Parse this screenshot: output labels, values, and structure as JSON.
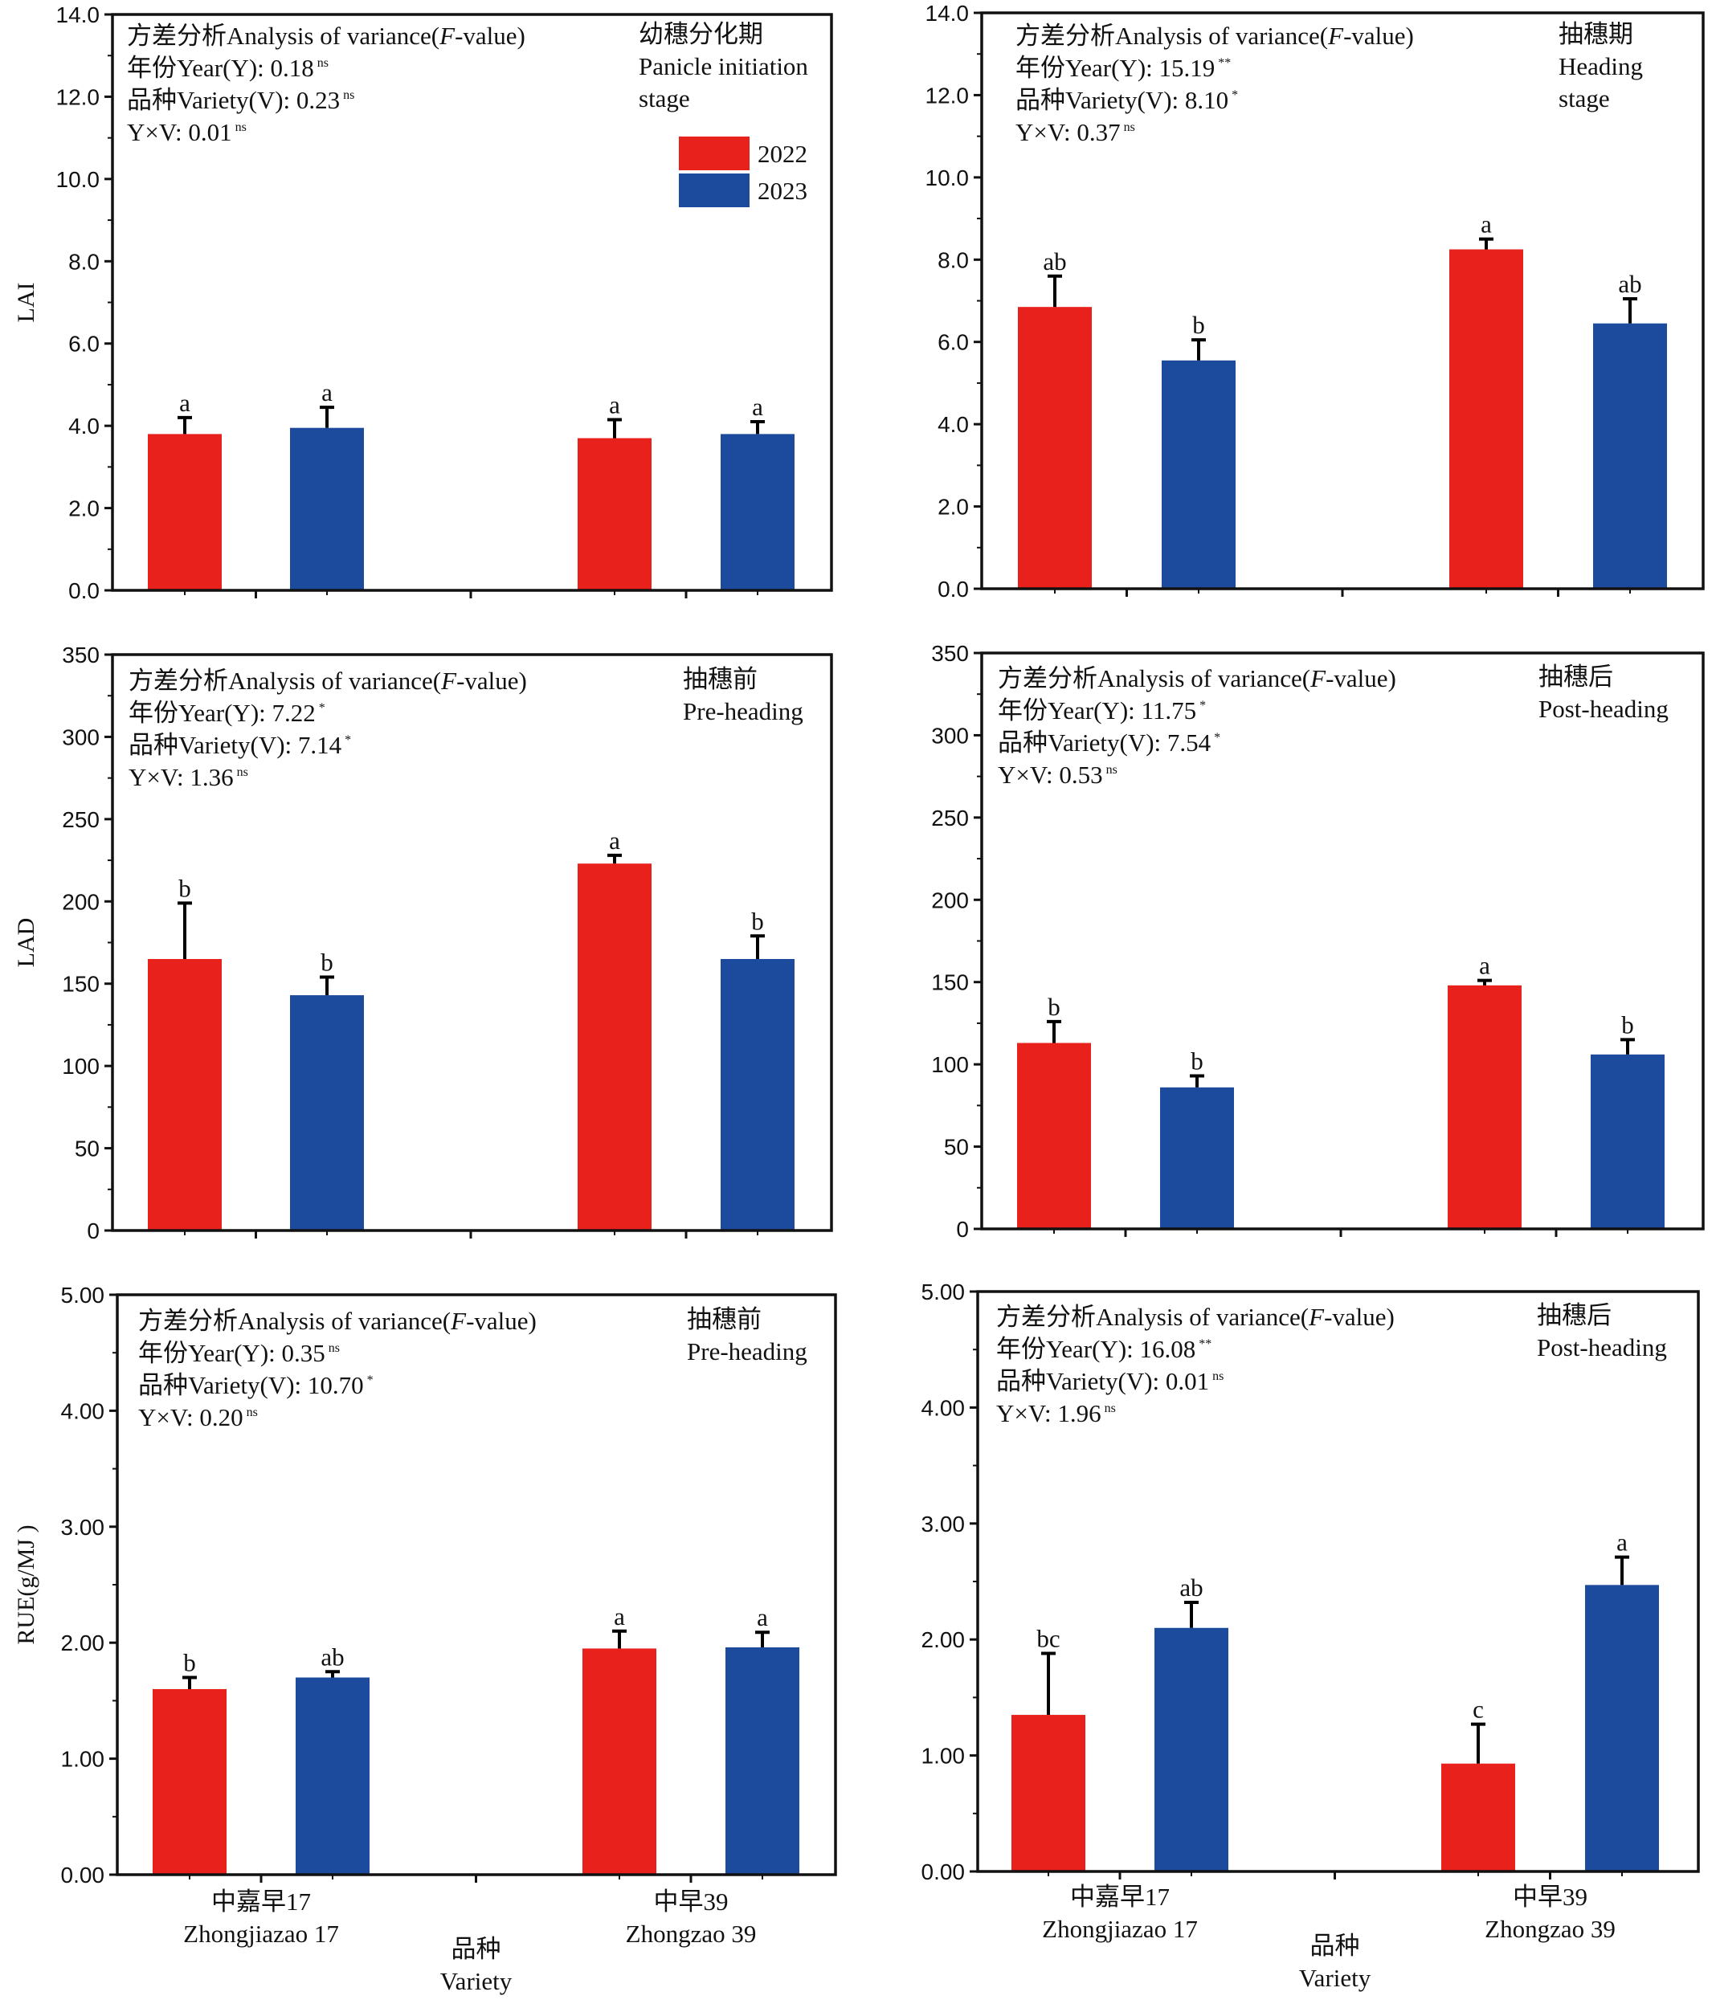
{
  "colors": {
    "y2022": "#e8211d",
    "y2023": "#1c4a9c",
    "axis": "#111111"
  },
  "shared": {
    "categories": [
      {
        "zh": "中嘉早17",
        "en": "Zhongjiazao 17"
      },
      {
        "zh": "中早39",
        "en": "Zhongzao 39"
      }
    ],
    "legend": [
      "2022",
      "2023"
    ],
    "xlabel": {
      "zh": "品种",
      "en": "Variety"
    },
    "anova_title": {
      "zh": "方差分析",
      "en_pre": "Analysis of variance(",
      "f": "F",
      "en_post": "-value)"
    }
  },
  "chart_data": [
    {
      "type": "bar",
      "panel": "a",
      "ylabel": "LAI",
      "ylim": [
        0,
        14
      ],
      "yticks": [
        "0.0",
        "2.0",
        "4.0",
        "6.0",
        "8.0",
        "10.0",
        "12.0",
        "14.0"
      ],
      "stage": {
        "zh": "幼穗分化期",
        "en": [
          "Panicle initiation",
          "stage"
        ]
      },
      "anova": [
        {
          "label": "年份Year(Y): 0.18",
          "sig": "ns"
        },
        {
          "label": "品种Variety(V): 0.23",
          "sig": "ns"
        },
        {
          "label": "Y×V: 0.01",
          "sig": "ns"
        }
      ],
      "legend": "top-right",
      "series": [
        {
          "name": "2022",
          "values": [
            3.8,
            3.7
          ],
          "errors": [
            0.4,
            0.45
          ],
          "letters": [
            "a",
            "a"
          ]
        },
        {
          "name": "2023",
          "values": [
            3.95,
            3.8
          ],
          "errors": [
            0.5,
            0.3
          ],
          "letters": [
            "a",
            "a"
          ]
        }
      ]
    },
    {
      "type": "bar",
      "panel": "b",
      "ylabel": "",
      "ylim": [
        0,
        14
      ],
      "yticks": [
        "0.0",
        "2.0",
        "4.0",
        "6.0",
        "8.0",
        "10.0",
        "12.0",
        "14.0"
      ],
      "stage": {
        "zh": "抽穗期",
        "en": [
          "Heading",
          "stage"
        ]
      },
      "anova": [
        {
          "label": "年份Year(Y): 15.19",
          "sig": "**"
        },
        {
          "label": "品种Variety(V): 8.10",
          "sig": "*"
        },
        {
          "label": "Y×V: 0.37",
          "sig": "ns"
        }
      ],
      "series": [
        {
          "name": "2022",
          "values": [
            6.85,
            8.25
          ],
          "errors": [
            0.75,
            0.25
          ],
          "letters": [
            "ab",
            "a"
          ]
        },
        {
          "name": "2023",
          "values": [
            5.55,
            6.45
          ],
          "errors": [
            0.5,
            0.6
          ],
          "letters": [
            "b",
            "ab"
          ]
        }
      ]
    },
    {
      "type": "bar",
      "panel": "c",
      "ylabel": "LAD",
      "ylim": [
        0,
        350
      ],
      "yticks": [
        "0",
        "50",
        "100",
        "150",
        "200",
        "250",
        "300",
        "350"
      ],
      "stage": {
        "zh": "抽穗前",
        "en": [
          "Pre-heading"
        ]
      },
      "anova": [
        {
          "label": "年份Year(Y): 7.22",
          "sig": "*"
        },
        {
          "label": "品种Variety(V): 7.14",
          "sig": "*"
        },
        {
          "label": "Y×V: 1.36",
          "sig": "ns"
        }
      ],
      "series": [
        {
          "name": "2022",
          "values": [
            165,
            223
          ],
          "errors": [
            34,
            5
          ],
          "letters": [
            "b",
            "a"
          ]
        },
        {
          "name": "2023",
          "values": [
            143,
            165
          ],
          "errors": [
            11,
            14
          ],
          "letters": [
            "b",
            "b"
          ]
        }
      ]
    },
    {
      "type": "bar",
      "panel": "d",
      "ylabel": "",
      "ylim": [
        0,
        350
      ],
      "yticks": [
        "0",
        "50",
        "100",
        "150",
        "200",
        "250",
        "300",
        "350"
      ],
      "stage": {
        "zh": "抽穗后",
        "en": [
          "Post-heading"
        ]
      },
      "anova": [
        {
          "label": "年份Year(Y):  11.75",
          "sig": "*"
        },
        {
          "label": "品种Variety(V): 7.54",
          "sig": "*"
        },
        {
          "label": "Y×V: 0.53",
          "sig": "ns"
        }
      ],
      "series": [
        {
          "name": "2022",
          "values": [
            113,
            148
          ],
          "errors": [
            13,
            3
          ],
          "letters": [
            "b",
            "a"
          ]
        },
        {
          "name": "2023",
          "values": [
            86,
            106
          ],
          "errors": [
            7,
            9
          ],
          "letters": [
            "b",
            "b"
          ]
        }
      ]
    },
    {
      "type": "bar",
      "panel": "e",
      "ylabel": "RUE(g/MJ )",
      "ylim": [
        0,
        5
      ],
      "yticks": [
        "0.00",
        "1.00",
        "2.00",
        "3.00",
        "4.00",
        "5.00"
      ],
      "stage": {
        "zh": "抽穗前",
        "en": [
          "Pre-heading"
        ]
      },
      "anova": [
        {
          "label": "年份Year(Y): 0.35",
          "sig": "ns"
        },
        {
          "label": "品种Variety(V): 10.70",
          "sig": "*"
        },
        {
          "label": "Y×V: 0.20",
          "sig": "ns"
        }
      ],
      "series": [
        {
          "name": "2022",
          "values": [
            1.6,
            1.95
          ],
          "errors": [
            0.1,
            0.15
          ],
          "letters": [
            "b",
            "a"
          ]
        },
        {
          "name": "2023",
          "values": [
            1.7,
            1.96
          ],
          "errors": [
            0.05,
            0.13
          ],
          "letters": [
            "ab",
            "a"
          ]
        }
      ]
    },
    {
      "type": "bar",
      "panel": "f",
      "ylabel": "",
      "ylim": [
        0,
        5
      ],
      "yticks": [
        "0.00",
        "1.00",
        "2.00",
        "3.00",
        "4.00",
        "5.00"
      ],
      "stage": {
        "zh": "抽穗后",
        "en": [
          "Post-heading"
        ]
      },
      "anova": [
        {
          "label": "年份Year(Y): 16.08",
          "sig": "**"
        },
        {
          "label": "品种Variety(V): 0.01",
          "sig": "ns"
        },
        {
          "label": "Y×V: 1.96",
          "sig": "ns"
        }
      ],
      "series": [
        {
          "name": "2022",
          "values": [
            1.35,
            0.93
          ],
          "errors": [
            0.53,
            0.34
          ],
          "letters": [
            "bc",
            "c"
          ]
        },
        {
          "name": "2023",
          "values": [
            2.1,
            2.47
          ],
          "errors": [
            0.22,
            0.24
          ],
          "letters": [
            "ab",
            "a"
          ]
        }
      ]
    }
  ]
}
